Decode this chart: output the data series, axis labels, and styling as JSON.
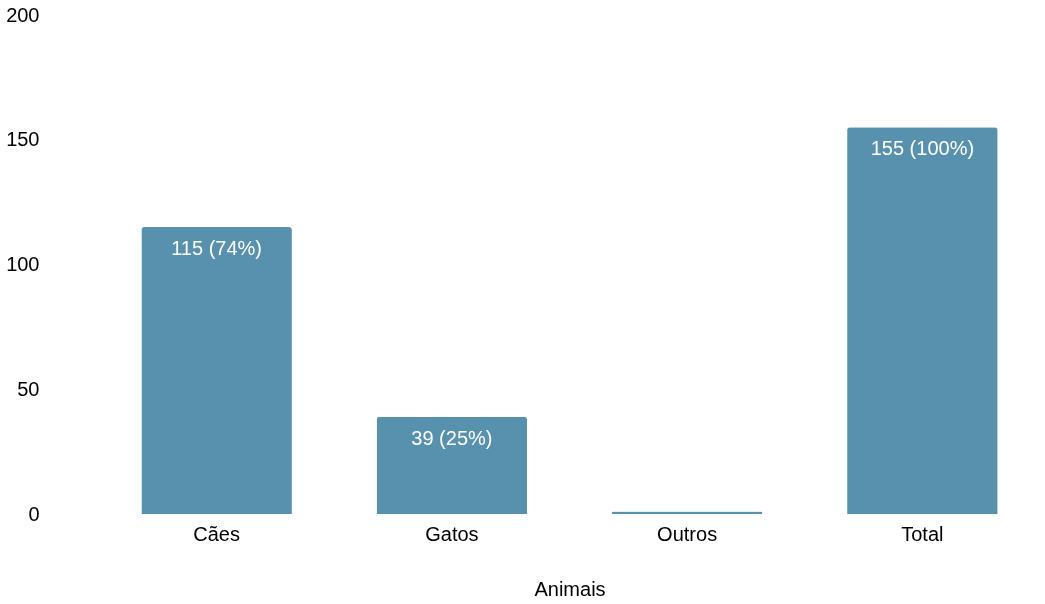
{
  "chart_data": {
    "type": "bar",
    "xlabel": "Animais",
    "categories": [
      "Cães",
      "Gatos",
      "Outros",
      "Total"
    ],
    "values": [
      115,
      39,
      1,
      155
    ],
    "value_labels": [
      "115 (74%)",
      "39 (25%)",
      null,
      "155 (100%)"
    ],
    "color": "#5891ae",
    "ylim": [
      0,
      200
    ],
    "yticks": [
      0,
      50,
      100,
      150,
      200
    ],
    "grid": false
  }
}
